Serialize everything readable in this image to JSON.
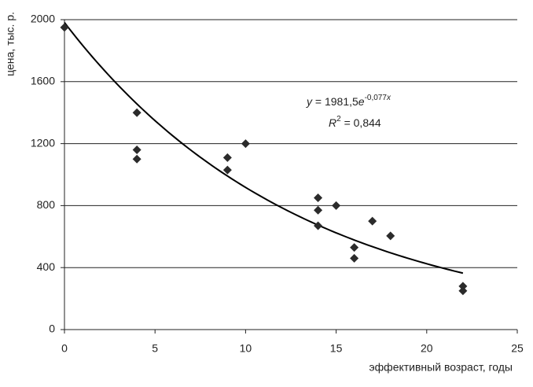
{
  "chart_data": {
    "type": "scatter",
    "x_label": "эффективный возраст, годы",
    "y_label": "цена, тыс. р.",
    "series": [
      {
        "color": "#2b2b2b",
        "x": [
          0,
          4,
          4,
          4,
          9,
          9,
          10,
          14,
          14,
          14,
          15,
          16,
          16,
          17,
          18,
          22,
          22
        ],
        "values": [
          1950,
          1400,
          1160,
          1100,
          1110,
          1030,
          1200,
          850,
          770,
          670,
          800,
          530,
          460,
          700,
          605,
          280,
          250
        ]
      }
    ],
    "trendline": {
      "a": 1981.5,
      "b": -0.077,
      "color": "#000000",
      "equation": [
        "y",
        " = 1981,5",
        "e",
        "-0,077",
        "x"
      ],
      "r2": [
        "R",
        "2",
        " = 0,844"
      ]
    },
    "xlim": [
      0,
      25
    ],
    "xticks": [
      0,
      5,
      10,
      15,
      20,
      25
    ],
    "ylim": [
      0,
      2000
    ],
    "yticks": [
      0,
      400,
      800,
      1200,
      1600,
      2000
    ],
    "grid": true
  }
}
